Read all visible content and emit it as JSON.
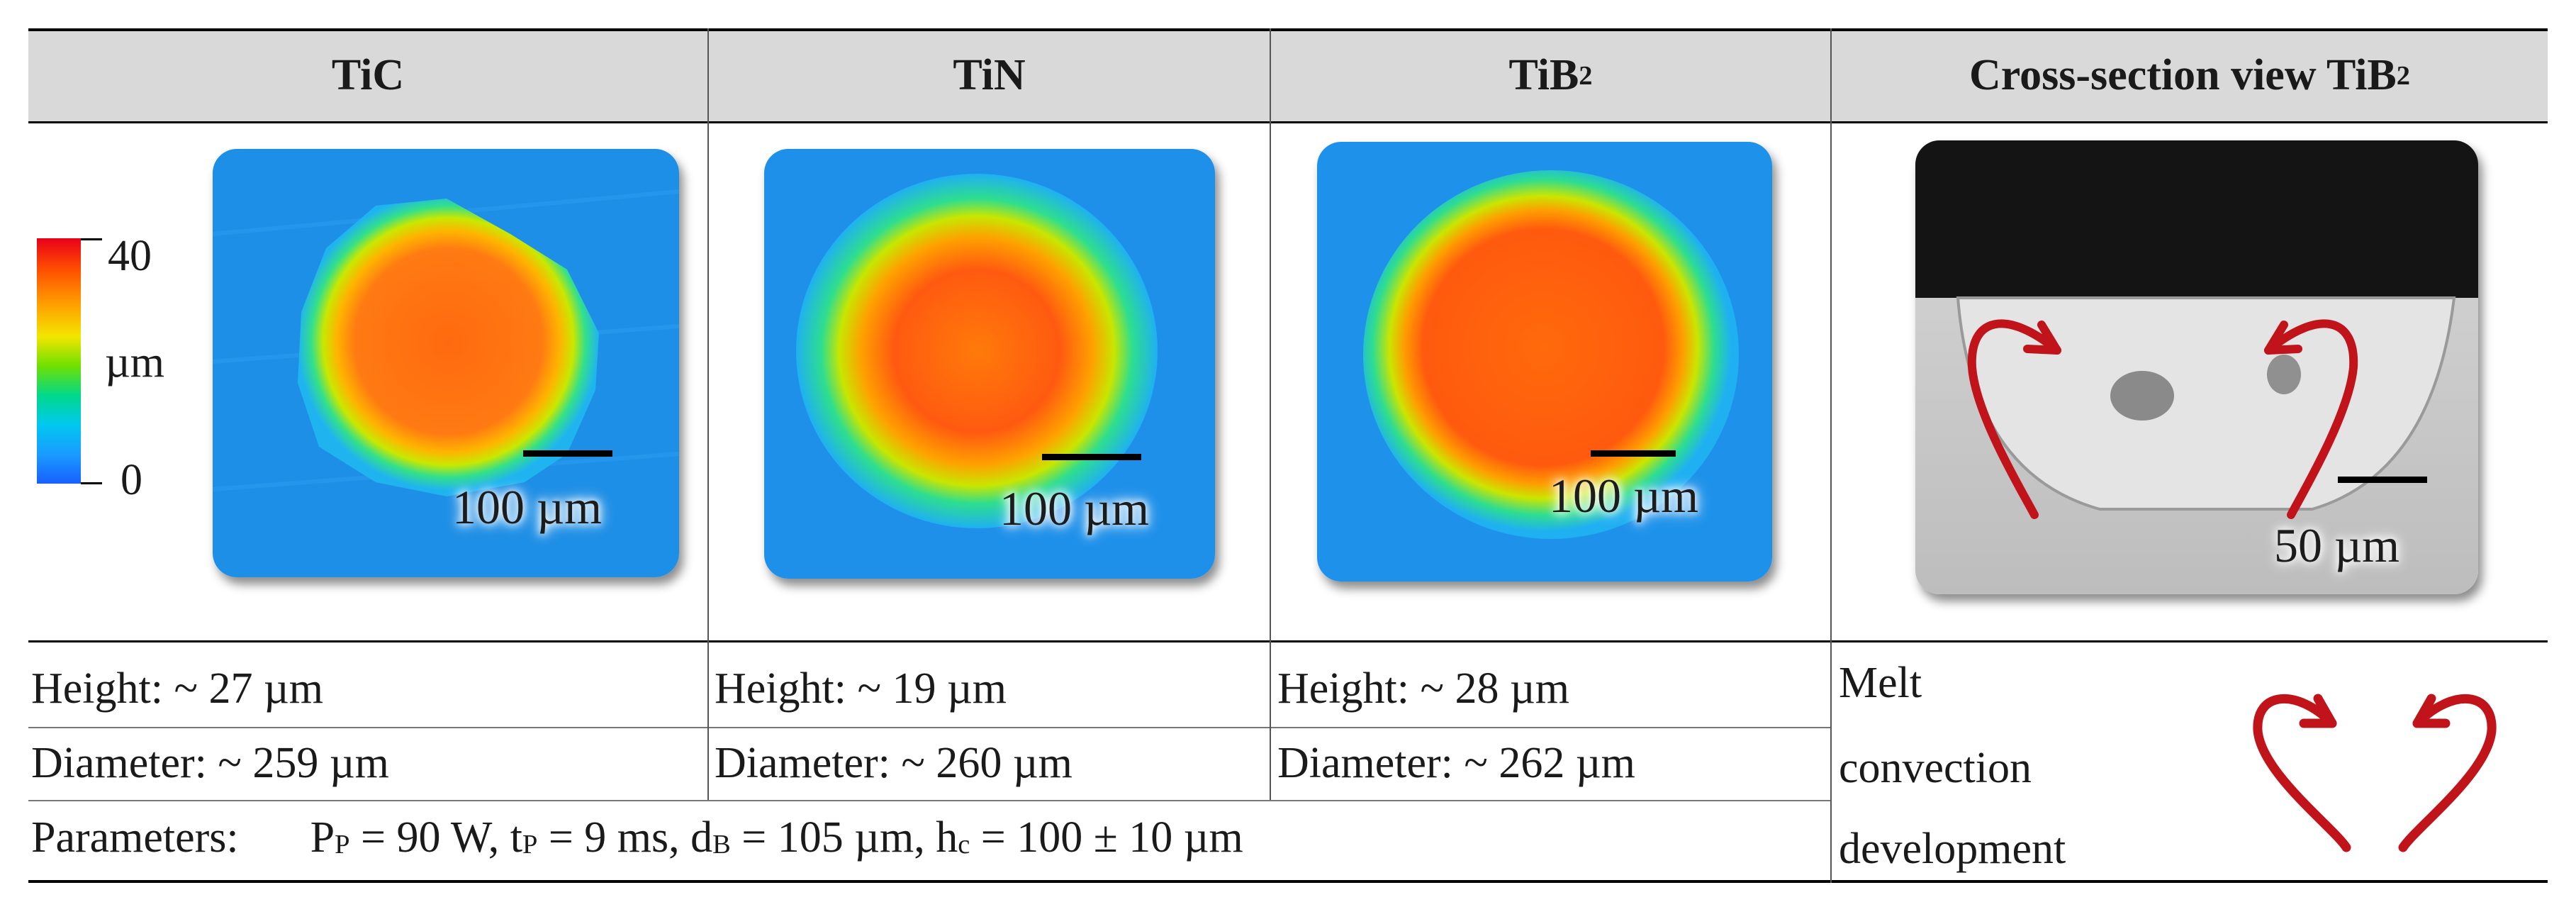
{
  "headers": [
    "TiC",
    "TiN",
    "TiB",
    "Cross-section view TiB"
  ],
  "header_subscripts": {
    "tib2": "2",
    "cross_section": "2"
  },
  "colorbar": {
    "max_label": "40",
    "unit_label": "µm",
    "min_label": "0"
  },
  "panels": [
    {
      "material": "TiC",
      "scale_label": "100 µm"
    },
    {
      "material": "TiN",
      "scale_label": "100 µm"
    },
    {
      "material": "TiB2",
      "scale_label": "100 µm"
    },
    {
      "material": "TiB2 cross-section",
      "scale_label": "50 µm"
    }
  ],
  "measurements": {
    "tic": {
      "height": "Height: ~ 27 µm",
      "diameter": "Diameter: ~ 259 µm"
    },
    "tin": {
      "height": "Height: ~ 19 µm",
      "diameter": "Diameter: ~ 260 µm"
    },
    "tib2": {
      "height": "Height: ~ 28 µm",
      "diameter": "Diameter: ~ 262 µm"
    }
  },
  "melt_convection": {
    "line1": "Melt",
    "line2": "convection",
    "line3": "development"
  },
  "parameters": {
    "label": "Parameters:",
    "pp_main": "P",
    "pp_sub": "P",
    "pp_value": " = 90 W, ",
    "tp_main": "t",
    "tp_sub": "P",
    "tp_value": " = 9 ms, ",
    "db_main": "d",
    "db_sub": "B",
    "db_value": " = 105 µm, ",
    "hc_main": "h",
    "hc_sub": "c",
    "hc_value": " = 100 ± 10 µm"
  },
  "colors": {
    "header_bg": "#d9d9d9",
    "arrow_red": "#c0141a"
  }
}
